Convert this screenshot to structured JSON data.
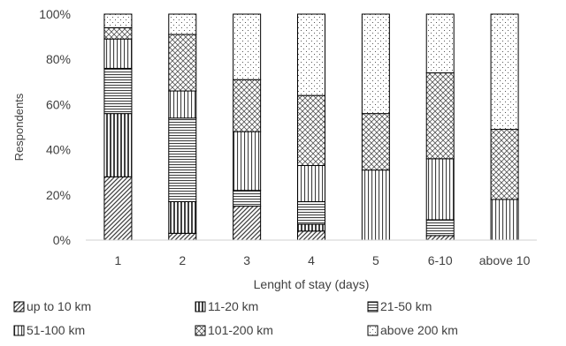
{
  "chart_data": {
    "type": "bar",
    "stacked": true,
    "percent": true,
    "xlabel": "Lenght of stay (days)",
    "ylabel": "Respondents",
    "ylim": [
      0,
      100
    ],
    "yticks": [
      "0%",
      "20%",
      "40%",
      "60%",
      "80%",
      "100%"
    ],
    "grid": false,
    "legend_position": "bottom",
    "categories": [
      "1",
      "2",
      "3",
      "4",
      "5",
      "6-10",
      "above 10"
    ],
    "series": [
      {
        "name": "up to 10 km",
        "pattern": "diagonal",
        "values": [
          28,
          3,
          15,
          4,
          0,
          2,
          0
        ]
      },
      {
        "name": "11-20 km",
        "pattern": "vertical-dense",
        "values": [
          28,
          14,
          0,
          3,
          0,
          0,
          0
        ]
      },
      {
        "name": "21-50 km",
        "pattern": "horizontal",
        "values": [
          20,
          37,
          7,
          10,
          0,
          7,
          0
        ]
      },
      {
        "name": "51-100 km",
        "pattern": "vertical",
        "values": [
          13,
          12,
          26,
          16,
          31,
          27,
          18
        ]
      },
      {
        "name": "101-200 km",
        "pattern": "crosshatch",
        "values": [
          5,
          25,
          23,
          31,
          25,
          38,
          31
        ]
      },
      {
        "name": "above 200 km",
        "pattern": "dots",
        "values": [
          6,
          9,
          29,
          36,
          44,
          26,
          51
        ]
      }
    ]
  }
}
